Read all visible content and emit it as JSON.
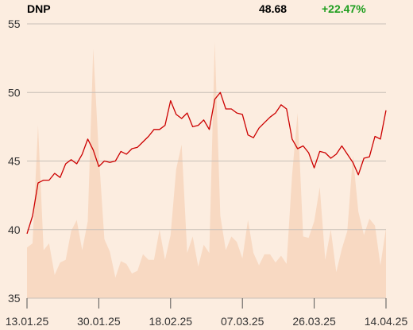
{
  "header": {
    "ticker": "DNP",
    "price": "48.68",
    "change": "+22.47%"
  },
  "colors": {
    "background": "#fcede0",
    "line": "#cc0000",
    "volume_fill": "#f8d9c2",
    "gain": "#1e9e1e",
    "grid": "#c8c0b8"
  },
  "chart_data": {
    "type": "line",
    "title": "",
    "xlabel": "",
    "ylabel": "",
    "y_ticks": [
      55,
      50,
      45,
      40,
      35
    ],
    "ylim": [
      35,
      55
    ],
    "x_ticks": [
      "13.01.25",
      "30.01.25",
      "18.02.25",
      "07.03.25",
      "26.03.25",
      "14.04.25"
    ],
    "grid": "horizontal",
    "series": [
      {
        "type": "line",
        "values": [
          39.7,
          41.0,
          43.4,
          43.6,
          43.6,
          44.1,
          43.8,
          44.8,
          45.1,
          44.8,
          45.5,
          46.6,
          45.8,
          44.6,
          45.0,
          44.9,
          45.0,
          45.7,
          45.5,
          45.9,
          46.0,
          46.4,
          46.8,
          47.3,
          47.3,
          47.6,
          49.4,
          48.4,
          48.1,
          48.5,
          47.5,
          47.6,
          48.0,
          47.3,
          49.5,
          50.0,
          48.8,
          48.8,
          48.5,
          48.4,
          46.9,
          46.7,
          47.4,
          47.8,
          48.2,
          48.5,
          49.1,
          48.8,
          46.6,
          45.9,
          46.1,
          45.6,
          44.5,
          45.7,
          45.6,
          45.2,
          45.5,
          46.1,
          45.5,
          44.9,
          44.0,
          45.2,
          45.3,
          46.8,
          46.6,
          48.7
        ]
      },
      {
        "type": "area",
        "values": [
          38.7,
          39.0,
          47.6,
          38.5,
          39.0,
          36.7,
          37.6,
          37.8,
          39.9,
          40.7,
          38.5,
          40.6,
          53.2,
          45.5,
          39.3,
          38.4,
          36.5,
          37.7,
          37.5,
          36.8,
          37.0,
          38.2,
          37.8,
          37.8,
          40.0,
          37.8,
          39.6,
          44.4,
          46.2,
          38.3,
          39.5,
          37.3,
          38.9,
          38.3,
          53.7,
          41.0,
          38.5,
          39.5,
          39.1,
          37.9,
          40.7,
          38.3,
          37.4,
          38.2,
          38.2,
          37.6,
          38.1,
          37.5,
          44.0,
          48.5,
          39.5,
          39.4,
          40.6,
          43.1,
          37.8,
          40.0,
          36.9,
          38.6,
          39.9,
          45.4,
          41.3,
          39.6,
          40.8,
          40.3,
          37.4,
          40.1
        ]
      }
    ]
  }
}
